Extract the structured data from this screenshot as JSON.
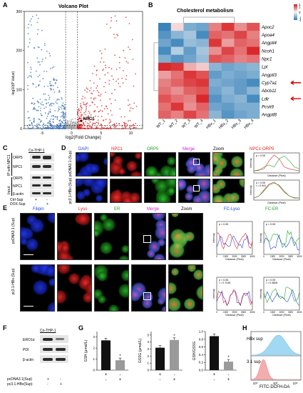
{
  "panel_letters": [
    "A",
    "B",
    "C",
    "D",
    "E",
    "F",
    "G",
    "H"
  ],
  "panelA": {
    "title": "Volcano Plot",
    "ylabel": "-log10(P Value)",
    "xlabel": "log2(Fold Change)",
    "yticks": [
      "0",
      "100",
      "200",
      "300"
    ],
    "xticks": [
      "-5",
      "0",
      "5",
      "10"
    ],
    "annotation": "NPC1"
  },
  "panelB": {
    "title": "Cholesterol metabolism",
    "genes": [
      "Apoc2",
      "Apoa4",
      "Angptl4",
      "Ncoh1",
      "Npc1",
      "Lpl",
      "Angptl3",
      "Cyp7a1",
      "Abcb11",
      "Ldlr",
      "Pcsk9",
      "Angptl8"
    ],
    "arrow_genes": [
      "Cyp7a1",
      "Ldlr"
    ],
    "columns": [
      "WT_1",
      "WT_2",
      "WT_3",
      "WT_4",
      "HBx_1",
      "HBx_2",
      "HBx_3",
      "HBx_4"
    ],
    "scale": [
      "1.5",
      "1",
      "0.5",
      "0",
      "-0.5",
      "-1",
      "-1.5"
    ],
    "colors": {
      "high": "#d7191c",
      "mid": "#f7f7f7",
      "low": "#2c7bb6"
    }
  },
  "panelC": {
    "cell": "Co-THP-1",
    "ip_label": "IP with NPC1",
    "input_label": "Input",
    "blots": [
      "ORP5",
      "NPC1",
      "ORP5",
      "NPC1",
      "β-actin"
    ],
    "rows": [
      "Ctrl-Sup",
      "DOX-Sup"
    ],
    "signs": [
      [
        "+",
        "-"
      ],
      [
        "-",
        "+"
      ]
    ]
  },
  "panelD": {
    "headers": [
      "DAPI",
      "NPC1",
      "ORP5",
      "Merge",
      "Zoom",
      "NPC1-ORP5"
    ],
    "rows": [
      "pcDNA3.1 (Sup)",
      "pc3.1-HBx (Sup)"
    ],
    "stats": [
      [
        "p > 0.05"
      ],
      [
        "p < 0.05",
        "r = 0.941"
      ]
    ],
    "ylabel": "Intensity",
    "xlabel": "Distance (Pixel)"
  },
  "panelE": {
    "headers": [
      "Filipin",
      "Lyso",
      "ER",
      "Merge",
      "Zoom",
      "FC-Lyso",
      "FC-ER"
    ],
    "rows": [
      "pcDNA3.1 (Sup)",
      "pc3.1-HBx (Sup)"
    ],
    "stats_lyso": [
      [
        "p > 0.05"
      ],
      [
        "p < 0.05",
        "r = 0.7246"
      ]
    ],
    "stats_er": [
      [
        "p > 0.05"
      ],
      [
        "p > 0.05",
        "r = 0.3806"
      ]
    ],
    "ylabel": "Intensity",
    "xlabel": "Distance (Pixel)",
    "xticks": [
      "0",
      "1000",
      "2000",
      "3000",
      "4000"
    ]
  },
  "panelF": {
    "cell": "Co-THP-1",
    "blots": [
      "ERO1α",
      "PDI",
      "β-actin"
    ],
    "rows": [
      "pcDNA3.1(Sup)",
      "pc3.1-HBx(Sup)"
    ],
    "signs": [
      [
        "+",
        "-"
      ],
      [
        "-",
        "+"
      ]
    ]
  },
  "panelG": {
    "charts": [
      {
        "ylabel": "GSH (μmol/L)",
        "yticks": [
          "0",
          "1",
          "2",
          "3"
        ],
        "values": [
          2.7,
          0.9
        ],
        "ymax": 3.5,
        "star": "*"
      },
      {
        "ylabel": "GSSG (μmol/L)",
        "yticks": [
          "0",
          "1",
          "2",
          "3",
          "4",
          "5"
        ],
        "values": [
          3.2,
          4.3
        ],
        "ymax": 5.5,
        "star": "*"
      },
      {
        "ylabel": "GSH/GSSG",
        "yticks": [
          "0.0",
          "0.2",
          "0.4",
          "0.6",
          "0.8",
          "1.0"
        ],
        "values": [
          0.88,
          0.22
        ],
        "ymax": 1.0,
        "star": "*"
      }
    ],
    "signs": [
      [
        "+",
        "-"
      ],
      [
        "-",
        "+"
      ]
    ],
    "bar_colors": [
      "#111111",
      "#9a9a9a"
    ]
  },
  "panelH": {
    "rows": [
      "HBx sup",
      "3.1 sup"
    ],
    "xlabel": "FITC-DCFH-DA",
    "xticks": [
      "10⁰",
      "10³",
      "10⁵"
    ],
    "colors": [
      "#79c8ec",
      "#f08a8a"
    ]
  },
  "chart_data": [
    {
      "type": "bar",
      "title": "",
      "ylabel": "GSH (μmol/L)",
      "categories": [
        "pcDNA3.1(Sup)",
        "pc3.1-HBx(Sup)"
      ],
      "values": [
        2.7,
        0.9
      ],
      "ylim": [
        0,
        3.5
      ]
    },
    {
      "type": "bar",
      "title": "",
      "ylabel": "GSSG (μmol/L)",
      "categories": [
        "pcDNA3.1(Sup)",
        "pc3.1-HBx(Sup)"
      ],
      "values": [
        3.2,
        4.3
      ],
      "ylim": [
        0,
        5.5
      ]
    },
    {
      "type": "bar",
      "title": "",
      "ylabel": "GSH/GSSG",
      "categories": [
        "pcDNA3.1(Sup)",
        "pc3.1-HBx(Sup)"
      ],
      "values": [
        0.88,
        0.22
      ],
      "ylim": [
        0,
        1.0
      ]
    }
  ]
}
